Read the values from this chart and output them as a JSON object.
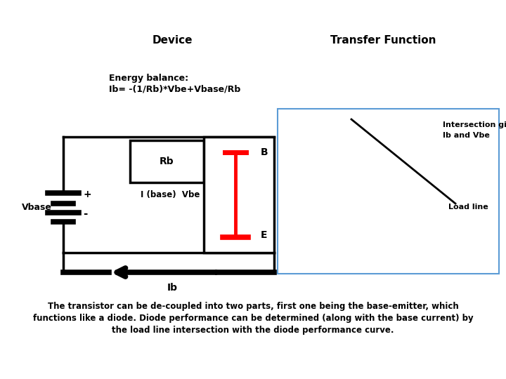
{
  "title_device": "Device",
  "title_transfer": "Transfer Function",
  "energy_balance_line1": "Energy balance:",
  "energy_balance_line2": "Ib= -(1/Rb)*Vbe+Vbase/Rb",
  "label_rb": "Rb",
  "label_b": "B",
  "label_e": "E",
  "label_ibase_vbe": "I (base)  Vbe",
  "label_vbase": "Vbase",
  "label_plus": "+",
  "label_minus": "-",
  "label_ib": "Ib",
  "label_intersection1": "Intersection gives",
  "label_intersection2": "Ib and Vbe",
  "label_loadline": "Load line",
  "bottom_text_line1": "The transistor can be de-coupled into two parts, first one being the base-emitter, which",
  "bottom_text_line2": "functions like a diode. Diode performance can be determined (along with the base current) by",
  "bottom_text_line3": "the load line intersection with the diode performance curve.",
  "bg_color": "#ffffff",
  "text_color": "#000000",
  "red_color": "#ff0000",
  "blue_color": "#5b9bd5",
  "lw": 2.5,
  "tlw": 5.5
}
